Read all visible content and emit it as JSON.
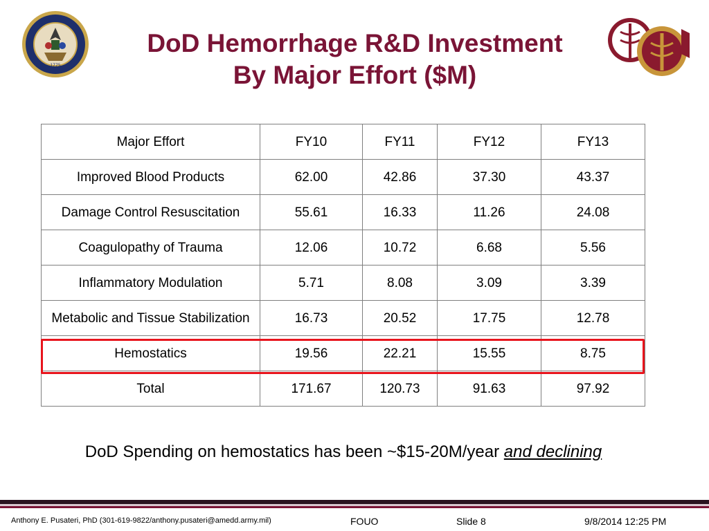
{
  "title": {
    "line1": "DoD Hemorrhage R&D Investment",
    "line2": "By Major Effort ($M)"
  },
  "logos": {
    "left": "department-of-the-army-seal",
    "right": "army-medical-department-insignias"
  },
  "colors": {
    "title": "#7a1436",
    "highlight": "#e8141c",
    "footer_bar": "#7a1436"
  },
  "table": {
    "columns": [
      "Major Effort",
      "FY10",
      "FY11",
      "FY12",
      "FY13"
    ],
    "rows": [
      {
        "label": "Improved Blood Products",
        "values": [
          "62.00",
          "42.86",
          "37.30",
          "43.37"
        ]
      },
      {
        "label": "Damage Control Resuscitation",
        "values": [
          "55.61",
          "16.33",
          "11.26",
          "24.08"
        ]
      },
      {
        "label": "Coagulopathy of Trauma",
        "values": [
          "12.06",
          "10.72",
          "6.68",
          "5.56"
        ]
      },
      {
        "label": "Inflammatory Modulation",
        "values": [
          "5.71",
          "8.08",
          "3.09",
          "3.39"
        ]
      },
      {
        "label": "Metabolic and Tissue Stabilization",
        "values": [
          "16.73",
          "20.52",
          "17.75",
          "12.78"
        ]
      },
      {
        "label": "Hemostatics",
        "values": [
          "19.56",
          "22.21",
          "15.55",
          "8.75"
        ]
      },
      {
        "label": "Total",
        "values": [
          "171.67",
          "120.73",
          "91.63",
          "97.92"
        ]
      }
    ],
    "highlighted_row": "Hemostatics"
  },
  "note": {
    "text": "DoD Spending on hemostatics has been ~$15-20M/year ",
    "emphasis": "and declining"
  },
  "footer": {
    "author": "Anthony E. Pusateri, PhD (301-619-9822/anthony.pusateri@amedd.army.mil)",
    "classification": "FOUO",
    "slide": "Slide 8",
    "date": "9/8/2014 12:25 PM"
  }
}
